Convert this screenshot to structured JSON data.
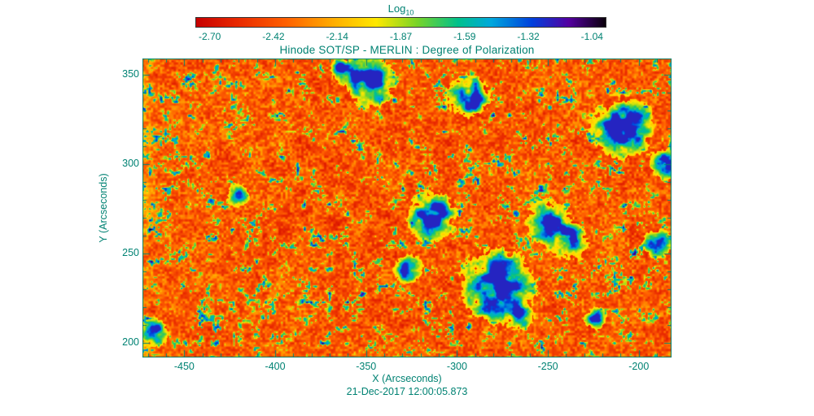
{
  "colors": {
    "text": "#008273",
    "axis": "#008273",
    "background": "#ffffff",
    "colorbar_border": "#333333"
  },
  "colorbar": {
    "label_main": "Log",
    "label_sub": "10",
    "tick_labels": [
      "-2.70",
      "-2.42",
      "-2.14",
      "-1.87",
      "-1.59",
      "-1.32",
      "-1.04"
    ]
  },
  "title": "Hinode SOT/SP - MERLIN : Degree of Polarization",
  "axes": {
    "xlabel": "X (Arcseconds)",
    "ylabel": "Y (Arcseconds)",
    "x_tick_labels": [
      "-450",
      "-400",
      "-350",
      "-300",
      "-250",
      "-200"
    ],
    "y_tick_labels": [
      "350",
      "300",
      "250",
      "200"
    ]
  },
  "footer": {
    "timestamp": "21-Dec-2017 12:00:05.873"
  },
  "chart_data": {
    "type": "heatmap",
    "title": "Hinode SOT/SP - MERLIN : Degree of Polarization",
    "xlabel": "X (Arcseconds)",
    "ylabel": "Y (Arcseconds)",
    "xlim": [
      -473,
      -182
    ],
    "ylim": [
      192,
      359
    ],
    "x_ticks": [
      -450,
      -400,
      -350,
      -300,
      -250,
      -200
    ],
    "y_ticks": [
      350,
      300,
      250,
      200
    ],
    "minor_tick_step": 10,
    "value_label": "Log10 Degree of Polarization",
    "value_range": [
      -2.7,
      -1.04
    ],
    "colorbar_ticks": [
      -2.7,
      -2.42,
      -2.14,
      -1.87,
      -1.59,
      -1.32,
      -1.04
    ],
    "background_character": "granular quiet-Sun field, mostly log10 p between about -2.7 and -2.2 (red/orange) with a speckled yellow-green intergranular network near -2.0; isolated strong-polarization patches reach about -1.6 to -1.1 (cyan/blue)",
    "colormap": [
      {
        "t": 0.0,
        "c": [
          198,
          0,
          0
        ]
      },
      {
        "t": 0.1,
        "c": [
          232,
          40,
          0
        ]
      },
      {
        "t": 0.22,
        "c": [
          255,
          96,
          0
        ]
      },
      {
        "t": 0.34,
        "c": [
          255,
          176,
          0
        ]
      },
      {
        "t": 0.44,
        "c": [
          255,
          232,
          0
        ]
      },
      {
        "t": 0.54,
        "c": [
          120,
          212,
          40
        ]
      },
      {
        "t": 0.64,
        "c": [
          0,
          192,
          140
        ]
      },
      {
        "t": 0.72,
        "c": [
          0,
          168,
          220
        ]
      },
      {
        "t": 0.82,
        "c": [
          0,
          64,
          220
        ]
      },
      {
        "t": 0.91,
        "c": [
          84,
          0,
          160
        ]
      },
      {
        "t": 1.0,
        "c": [
          10,
          0,
          10
        ]
      }
    ],
    "features_note": "approximate centers (arcsec) of high-polarization blue patches, radius r in arcsec",
    "features": [
      {
        "x": -348,
        "y": 346,
        "r": 8,
        "strength": 1.0
      },
      {
        "x": -294,
        "y": 337,
        "r": 7,
        "strength": 0.95
      },
      {
        "x": -209,
        "y": 321,
        "r": 10,
        "strength": 1.0
      },
      {
        "x": -421,
        "y": 283,
        "r": 4,
        "strength": 0.8
      },
      {
        "x": -314,
        "y": 271,
        "r": 8,
        "strength": 0.95
      },
      {
        "x": -250,
        "y": 268,
        "r": 7,
        "strength": 1.0
      },
      {
        "x": -278,
        "y": 232,
        "r": 12,
        "strength": 1.0
      },
      {
        "x": -327,
        "y": 242,
        "r": 5,
        "strength": 0.8
      },
      {
        "x": -224,
        "y": 214,
        "r": 4,
        "strength": 0.75
      },
      {
        "x": -467,
        "y": 206,
        "r": 5,
        "strength": 0.8
      },
      {
        "x": -363,
        "y": 353,
        "r": 4,
        "strength": 0.8
      },
      {
        "x": -185,
        "y": 300,
        "r": 5,
        "strength": 0.85
      },
      {
        "x": -238,
        "y": 256,
        "r": 6,
        "strength": 0.85
      },
      {
        "x": -265,
        "y": 215,
        "r": 4,
        "strength": 0.7
      },
      {
        "x": -190,
        "y": 256,
        "r": 5,
        "strength": 0.75
      }
    ]
  }
}
